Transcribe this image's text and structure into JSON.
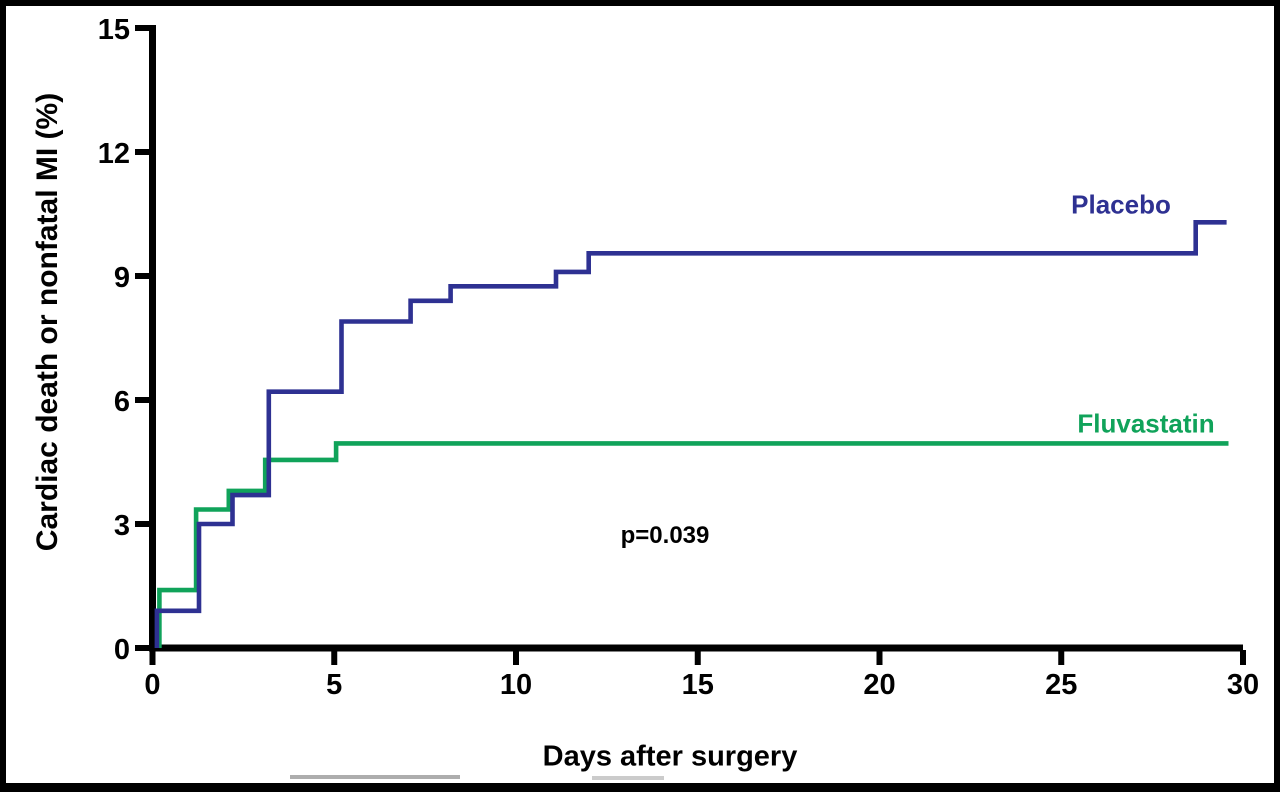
{
  "figure": {
    "background": "#ffffff",
    "border_color": "#000000",
    "axis_color": "#000000"
  },
  "chart_data": {
    "type": "line",
    "subtype": "kaplan-meier-step-curve",
    "title": "",
    "xlabel": "Days after surgery",
    "ylabel": "Cardiac death or nonfatal MI (%)",
    "annotation": "p=0.039",
    "xlim": [
      0,
      30
    ],
    "ylim": [
      0,
      15
    ],
    "x_ticks": [
      0,
      5,
      10,
      15,
      20,
      25,
      30
    ],
    "y_ticks": [
      0,
      3,
      6,
      9,
      12,
      15
    ],
    "grid": false,
    "legend_position": "labels-inline-right",
    "series": [
      {
        "name": "Placebo",
        "color": "#2E3192",
        "end_day": 29.55,
        "steps": [
          [
            0.12,
            0.9
          ],
          [
            1.28,
            3.0
          ],
          [
            2.2,
            3.7
          ],
          [
            3.2,
            6.2
          ],
          [
            5.2,
            7.9
          ],
          [
            7.1,
            8.4
          ],
          [
            8.2,
            8.75
          ],
          [
            11.1,
            9.1
          ],
          [
            12.0,
            9.55
          ],
          [
            28.7,
            10.3
          ]
        ]
      },
      {
        "name": "Fluvastatin",
        "color": "#10A35A",
        "end_day": 29.6,
        "steps": [
          [
            0.19,
            1.4
          ],
          [
            1.2,
            3.35
          ],
          [
            2.1,
            3.8
          ],
          [
            3.1,
            4.55
          ],
          [
            5.05,
            4.95
          ]
        ]
      }
    ]
  }
}
